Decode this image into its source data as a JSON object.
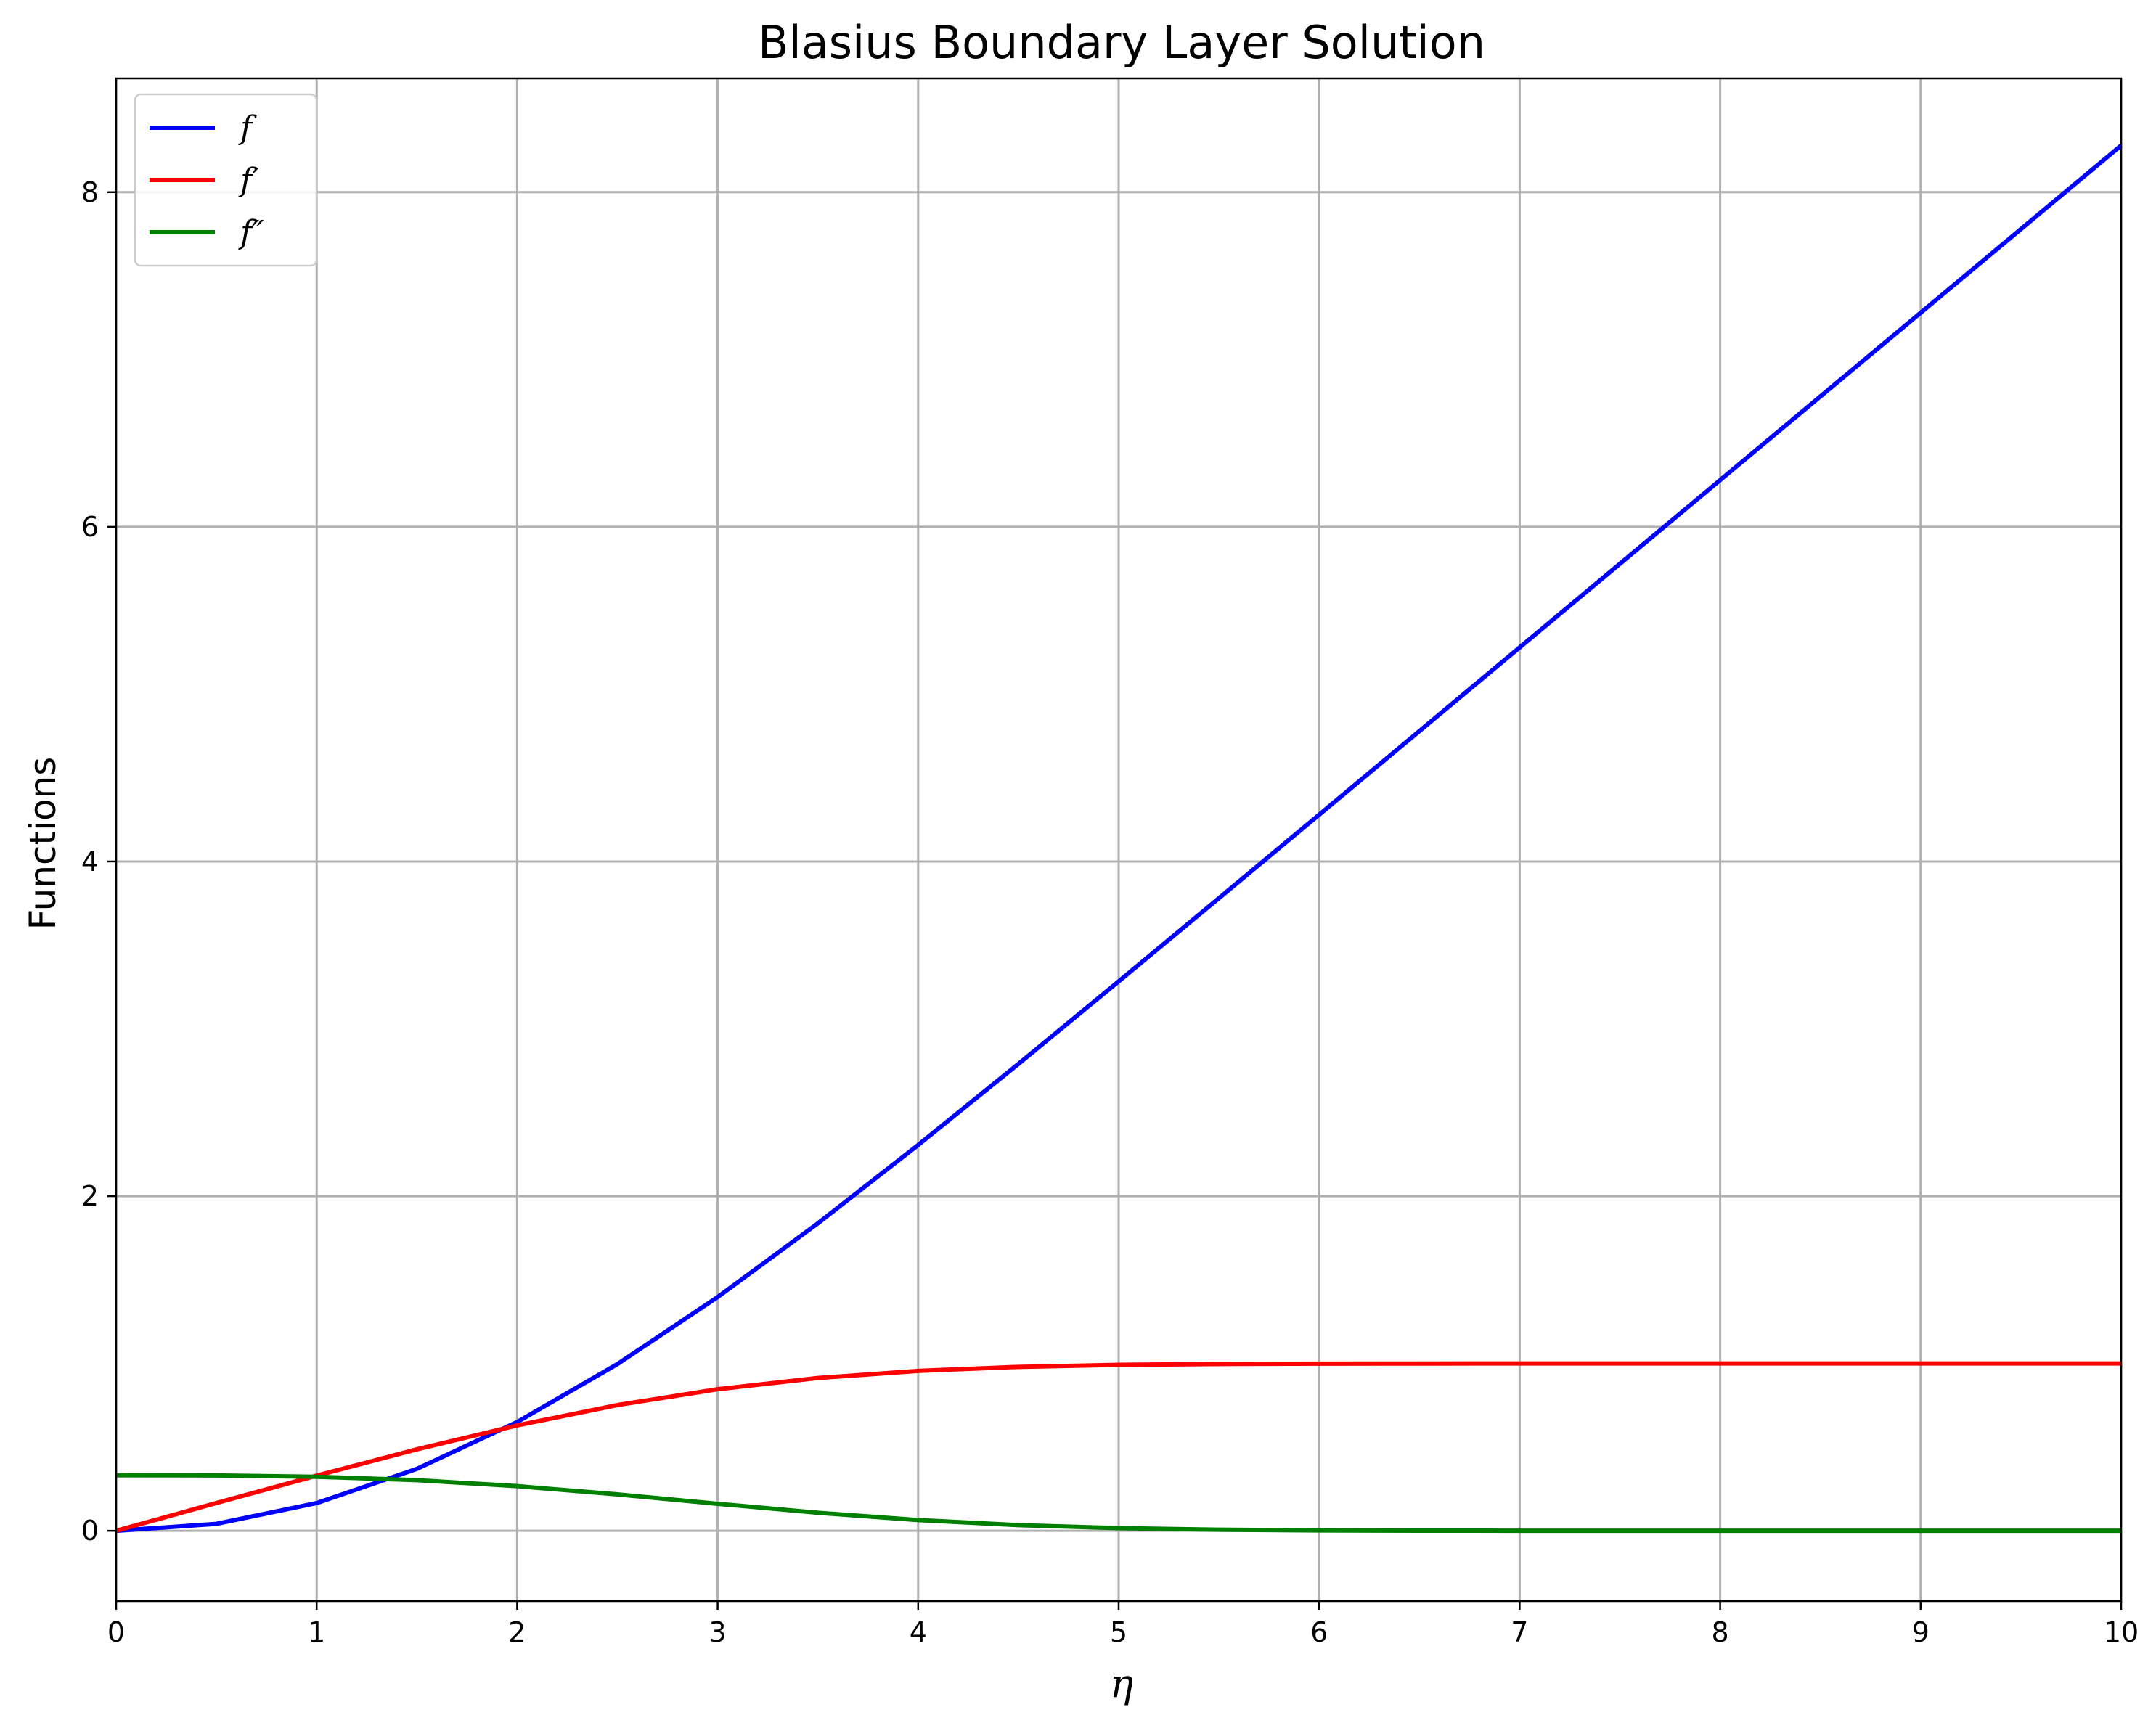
{
  "chart_data": {
    "type": "line",
    "title": "Blasius Boundary Layer Solution",
    "xlabel": "η",
    "ylabel": "Functions",
    "xlim": [
      0,
      10
    ],
    "ylim": [
      -0.42,
      8.68
    ],
    "xticks": [
      0,
      1,
      2,
      3,
      4,
      5,
      6,
      7,
      8,
      9,
      10
    ],
    "yticks": [
      0,
      2,
      4,
      6,
      8
    ],
    "grid": true,
    "legend_position": "top-left",
    "x": [
      0,
      0.5,
      1,
      1.5,
      2,
      2.5,
      3,
      3.5,
      4,
      4.5,
      5,
      5.5,
      6,
      6.5,
      7,
      7.5,
      8,
      8.5,
      9,
      9.5,
      10
    ],
    "series": [
      {
        "name": "f",
        "color": "#0000ff",
        "values": [
          0,
          0.0415,
          0.1656,
          0.3701,
          0.65,
          0.9963,
          1.3968,
          1.8377,
          2.3057,
          2.7901,
          3.2833,
          3.7806,
          4.2796,
          4.7793,
          5.2792,
          5.7792,
          6.2792,
          6.7792,
          7.2792,
          7.7792,
          8.2792
        ]
      },
      {
        "name": "f′",
        "color": "#ff0000",
        "values": [
          0,
          0.1659,
          0.3298,
          0.4868,
          0.6298,
          0.7513,
          0.8461,
          0.9131,
          0.9555,
          0.9795,
          0.9916,
          0.9969,
          0.999,
          0.9997,
          0.9999,
          1.0,
          1.0,
          1.0,
          1.0,
          1.0,
          1.0
        ]
      },
      {
        "name": "f″",
        "color": "#008000",
        "values": [
          0.3321,
          0.3309,
          0.323,
          0.3026,
          0.2668,
          0.2174,
          0.1614,
          0.1078,
          0.0642,
          0.034,
          0.0159,
          0.0066,
          0.0024,
          0.0008,
          0.0002,
          0.0001,
          0,
          0,
          0,
          0,
          0
        ]
      }
    ]
  }
}
